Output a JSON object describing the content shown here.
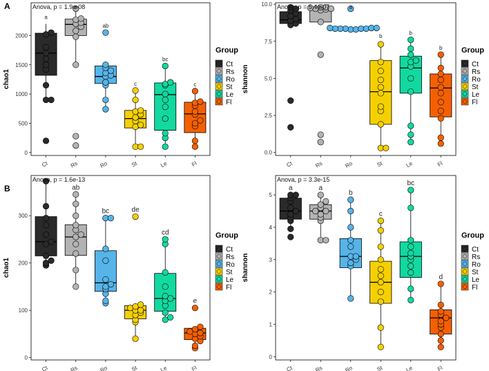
{
  "row_labels": [
    "A",
    "B"
  ],
  "legend_title": "Group",
  "colors": {
    "Ct": "#2a2a2a",
    "Rs": "#b3b3b3",
    "Ro": "#56b4e9",
    "St": "#f5d000",
    "Le": "#11d9a0",
    "Fl": "#f46000"
  },
  "chart_data": [
    {
      "type": "box",
      "row": "A",
      "annotation": "Anova, p = 1.9e-08",
      "ylabel": "chao1",
      "xlabel": "",
      "categories": [
        "Ct",
        "Rs",
        "Ro",
        "St",
        "Le",
        "Fl"
      ],
      "ylim": [
        -50,
        2560
      ],
      "yticks": [
        0,
        500,
        1000,
        1500,
        2000
      ],
      "ytick_labels": [
        "0",
        "500",
        "1000",
        "1500",
        "2000"
      ],
      "boxes": [
        {
          "q1": 1320,
          "median": 1700,
          "q3": 2040,
          "whisker_low": 900,
          "whisker_high": 2200
        },
        {
          "q1": 2000,
          "median": 2190,
          "q3": 2280,
          "whisker_low": 1500,
          "whisker_high": 2460
        },
        {
          "q1": 1180,
          "median": 1300,
          "q3": 1480,
          "whisker_low": 740,
          "whisker_high": 1500
        },
        {
          "q1": 420,
          "median": 580,
          "q3": 720,
          "whisker_low": 100,
          "whisker_high": 1060
        },
        {
          "q1": 380,
          "median": 990,
          "q3": 1190,
          "whisker_low": 100,
          "whisker_high": 1480
        },
        {
          "q1": 340,
          "median": 660,
          "q3": 860,
          "whisker_low": 100,
          "whisker_high": 1050
        }
      ],
      "points": [
        [
          200,
          900,
          900,
          1150,
          1420,
          1500,
          1600,
          1700,
          1800,
          2020,
          2050
        ],
        [
          120,
          280,
          1500,
          1980,
          2080,
          2150,
          2200,
          2220,
          2270,
          2290,
          2460
        ],
        [
          740,
          900,
          1150,
          1200,
          1300,
          1320,
          1360,
          1400,
          1450,
          1500,
          2050
        ],
        [
          100,
          100,
          440,
          470,
          540,
          600,
          650,
          700,
          720,
          900,
          1060
        ],
        [
          100,
          250,
          330,
          580,
          780,
          900,
          1000,
          1150,
          1170,
          1200,
          1480
        ],
        [
          100,
          200,
          450,
          500,
          550,
          650,
          700,
          800,
          850,
          870,
          1050
        ]
      ],
      "letters": [
        "a",
        "a",
        "ab",
        "c",
        "bc",
        "c"
      ]
    },
    {
      "type": "box",
      "row": "A",
      "annotation": "Anova, p = 5.4e-07",
      "ylabel": "shannon",
      "xlabel": "",
      "categories": [
        "Ct",
        "Rs",
        "Ro",
        "St",
        "Le",
        "Fl"
      ],
      "ylim": [
        -0.2,
        10.1
      ],
      "yticks": [
        0,
        2.5,
        5,
        7.5,
        10
      ],
      "ytick_labels": [
        "0.0",
        "2.5",
        "5.0",
        "7.5",
        "10.0"
      ],
      "boxes": [
        {
          "q1": 8.7,
          "median": 8.95,
          "q3": 9.5,
          "whisker_low": 8.5,
          "whisker_high": 9.8
        },
        {
          "q1": 8.8,
          "median": 9.7,
          "q3": 9.75,
          "whisker_low": 8.7,
          "whisker_high": 9.9
        },
        {
          "q1": 8.3,
          "median": 8.35,
          "q3": 8.4,
          "whisker_low": 8.25,
          "whisker_high": 8.5
        },
        {
          "q1": 1.9,
          "median": 4.1,
          "q3": 6.2,
          "whisker_low": 0.3,
          "whisker_high": 7.4
        },
        {
          "q1": 4.0,
          "median": 5.7,
          "q3": 6.5,
          "whisker_low": 0.7,
          "whisker_high": 7.6
        },
        {
          "q1": 2.4,
          "median": 4.35,
          "q3": 5.3,
          "whisker_low": 0.6,
          "whisker_high": 6.6
        }
      ],
      "points": [
        [
          1.7,
          3.5,
          8.6,
          8.7,
          8.9,
          9.0,
          9.2,
          9.4,
          9.6,
          9.7,
          9.8
        ],
        [
          0.7,
          1.2,
          6.6,
          8.8,
          9.6,
          9.65,
          9.7,
          9.7,
          9.75,
          9.8,
          9.8
        ],
        [
          8.3,
          8.3,
          8.35,
          8.35,
          8.35,
          8.35,
          8.35,
          8.4,
          8.4,
          8.4,
          9.7
        ],
        [
          0.3,
          0.3,
          1.9,
          2.8,
          3.1,
          4.0,
          4.4,
          4.9,
          5.5,
          6.1,
          7.3
        ],
        [
          0.7,
          1.2,
          1.8,
          4.1,
          5.0,
          5.8,
          6.1,
          6.2,
          6.6,
          7.0,
          7.6
        ],
        [
          0.6,
          1.0,
          2.3,
          2.8,
          3.4,
          4.0,
          4.4,
          4.9,
          5.3,
          5.7,
          6.6
        ]
      ],
      "letters": [
        "a",
        "a",
        "a",
        "b",
        "b",
        "b"
      ]
    },
    {
      "type": "box",
      "row": "B",
      "annotation": "Anova, p = 1.6e-13",
      "ylabel": "chao1",
      "xlabel": "",
      "categories": [
        "Ct",
        "Rs",
        "Ro",
        "St",
        "Le",
        "Fl"
      ],
      "ylim": [
        -5,
        385
      ],
      "yticks": [
        0,
        100,
        200,
        300
      ],
      "ytick_labels": [
        "0",
        "100",
        "200",
        "300"
      ],
      "boxes": [
        {
          "q1": 215,
          "median": 245,
          "q3": 298,
          "whisker_low": 195,
          "whisker_high": 373
        },
        {
          "q1": 216,
          "median": 255,
          "q3": 281,
          "whisker_low": 150,
          "whisker_high": 345
        },
        {
          "q1": 140,
          "median": 158,
          "q3": 226,
          "whisker_low": 115,
          "whisker_high": 295
        },
        {
          "q1": 82,
          "median": 100,
          "q3": 110,
          "whisker_low": 40,
          "whisker_high": 115
        },
        {
          "q1": 98,
          "median": 125,
          "q3": 178,
          "whisker_low": 80,
          "whisker_high": 250
        },
        {
          "q1": 38,
          "median": 52,
          "q3": 62,
          "whisker_low": 20,
          "whisker_high": 65
        }
      ],
      "points": [
        [
          195,
          200,
          205,
          215,
          240,
          245,
          260,
          280,
          295,
          320,
          373
        ],
        [
          150,
          185,
          220,
          240,
          255,
          260,
          270,
          280,
          300,
          325,
          345
        ],
        [
          115,
          120,
          135,
          145,
          150,
          155,
          165,
          205,
          230,
          295,
          295
        ],
        [
          40,
          75,
          80,
          90,
          95,
          100,
          100,
          105,
          108,
          112,
          298
        ],
        [
          80,
          85,
          95,
          110,
          120,
          125,
          130,
          150,
          180,
          240,
          250
        ],
        [
          20,
          25,
          35,
          40,
          45,
          50,
          52,
          55,
          60,
          65,
          105
        ]
      ],
      "letters": [
        "a",
        "ab",
        "bc",
        "de",
        "cd",
        "e"
      ]
    },
    {
      "type": "box",
      "row": "B",
      "annotation": "Anova, p = 3.3e-15",
      "ylabel": "shannon",
      "xlabel": "",
      "categories": [
        "Ct",
        "Rs",
        "Ro",
        "St",
        "Le",
        "Fl"
      ],
      "ylim": [
        -0.1,
        5.6
      ],
      "yticks": [
        0,
        1,
        2,
        3,
        4,
        5
      ],
      "ytick_labels": [
        "0",
        "1",
        "2",
        "3",
        "4",
        "5"
      ],
      "boxes": [
        {
          "q1": 4.25,
          "median": 4.5,
          "q3": 4.9,
          "whisker_low": 3.9,
          "whisker_high": 5.0
        },
        {
          "q1": 4.25,
          "median": 4.5,
          "q3": 4.7,
          "whisker_low": 3.6,
          "whisker_high": 5.0
        },
        {
          "q1": 2.75,
          "median": 3.1,
          "q3": 3.65,
          "whisker_low": 1.85,
          "whisker_high": 4.85
        },
        {
          "q1": 1.65,
          "median": 2.3,
          "q3": 2.95,
          "whisker_low": 0.3,
          "whisker_high": 4.2
        },
        {
          "q1": 2.45,
          "median": 3.1,
          "q3": 3.55,
          "whisker_low": 1.75,
          "whisker_high": 5.15
        },
        {
          "q1": 0.7,
          "median": 1.2,
          "q3": 1.45,
          "whisker_low": 0.3,
          "whisker_high": 2.25
        }
      ],
      "points": [
        [
          3.7,
          3.95,
          4.2,
          4.3,
          4.4,
          4.5,
          4.6,
          4.8,
          4.9,
          5.0,
          5.0
        ],
        [
          3.6,
          3.6,
          4.2,
          4.3,
          4.4,
          4.5,
          4.5,
          4.6,
          4.7,
          4.8,
          5.0
        ],
        [
          1.8,
          2.8,
          2.9,
          3.0,
          3.1,
          3.1,
          3.4,
          3.6,
          4.0,
          4.5,
          4.85
        ],
        [
          0.3,
          0.9,
          1.7,
          2.0,
          2.3,
          2.5,
          2.7,
          3.0,
          3.4,
          3.9,
          4.2
        ],
        [
          1.75,
          2.1,
          2.6,
          2.8,
          3.0,
          3.1,
          3.2,
          3.4,
          3.6,
          4.6,
          5.15
        ],
        [
          0.3,
          0.5,
          0.7,
          0.9,
          1.0,
          1.1,
          1.2,
          1.3,
          1.4,
          1.6,
          2.25
        ]
      ],
      "letters": [
        "a",
        "a",
        "b",
        "c",
        "bc",
        "d"
      ]
    }
  ]
}
